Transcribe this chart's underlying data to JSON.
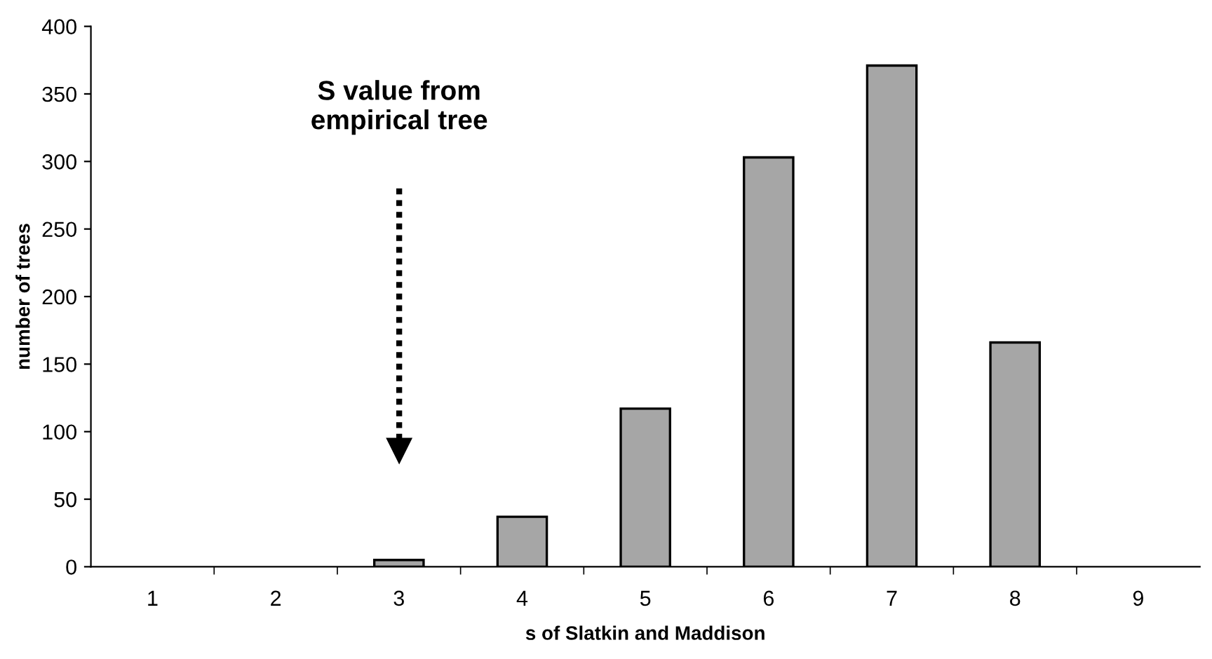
{
  "chart_data": {
    "type": "bar",
    "categories": [
      "1",
      "2",
      "3",
      "4",
      "5",
      "6",
      "7",
      "8",
      "9"
    ],
    "values": [
      0,
      0,
      5,
      37,
      117,
      303,
      371,
      166,
      0
    ],
    "color": "#a6a6a6",
    "xlabel": "s of Slatkin and Maddison",
    "ylabel": "number of trees",
    "ylim": [
      0,
      400
    ],
    "yticks": [
      0,
      50,
      100,
      150,
      200,
      250,
      300,
      350,
      400
    ],
    "grid": false,
    "legend": false,
    "annotations": [
      "S value from\nempirical tree"
    ]
  }
}
